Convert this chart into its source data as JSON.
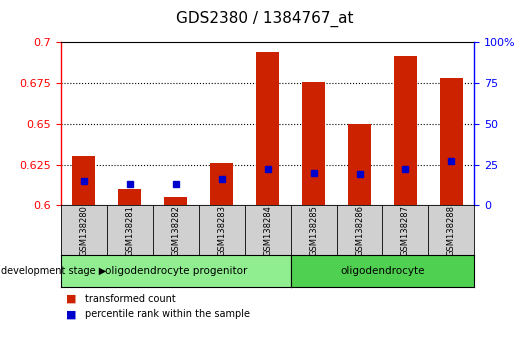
{
  "title": "GDS2380 / 1384767_at",
  "samples": [
    "GSM138280",
    "GSM138281",
    "GSM138282",
    "GSM138283",
    "GSM138284",
    "GSM138285",
    "GSM138286",
    "GSM138287",
    "GSM138288"
  ],
  "transformed_count": [
    0.63,
    0.61,
    0.605,
    0.626,
    0.694,
    0.676,
    0.65,
    0.692,
    0.678
  ],
  "percentile_rank": [
    15,
    13,
    13,
    16,
    22,
    20,
    19,
    22,
    27
  ],
  "ylim_left": [
    0.6,
    0.7
  ],
  "ylim_right": [
    0,
    100
  ],
  "yticks_left": [
    0.6,
    0.625,
    0.65,
    0.675,
    0.7
  ],
  "yticks_right": [
    0,
    25,
    50,
    75,
    100
  ],
  "bar_color": "#cc2200",
  "scatter_color": "#0000cc",
  "baseline": 0.6,
  "groups": [
    {
      "label": "oligodendrocyte progenitor",
      "start": 0,
      "end": 5
    },
    {
      "label": "oligodendrocyte",
      "start": 5,
      "end": 9
    }
  ],
  "group_colors": [
    "#90ee90",
    "#50d050"
  ],
  "dev_stage_label": "development stage",
  "legend_red_label": "transformed count",
  "legend_blue_label": "percentile rank within the sample",
  "title_fontsize": 11,
  "tick_fontsize": 8,
  "bar_width": 0.5
}
